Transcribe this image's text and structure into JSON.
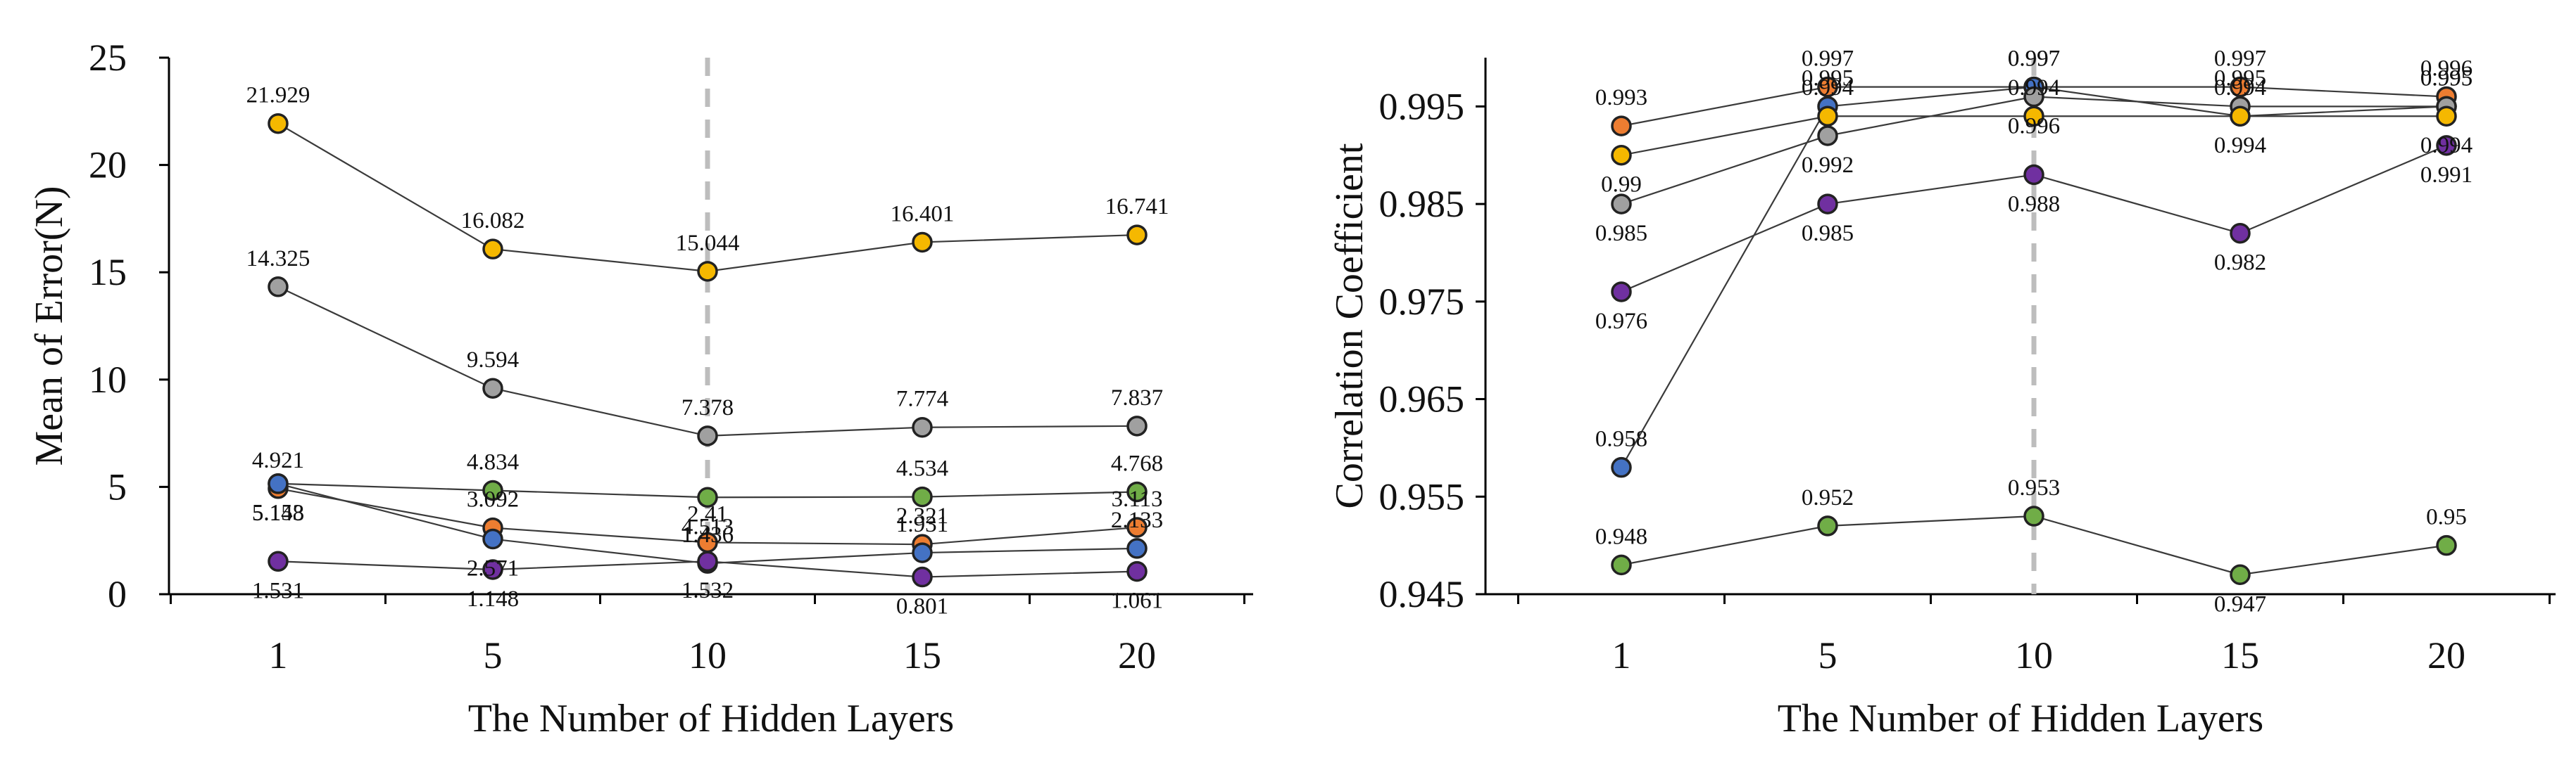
{
  "chart_data": [
    {
      "type": "line",
      "xlabel": "The Number of Hidden Layers",
      "ylabel": "Mean of Error(N)",
      "categories": [
        "1",
        "5",
        "10",
        "15",
        "20"
      ],
      "ylim": [
        0,
        25
      ],
      "yticks": [
        "0",
        "5",
        "10",
        "15",
        "20",
        "25"
      ],
      "reference_category": "10",
      "series": [
        {
          "name": "yellow",
          "color": "#F5B800",
          "values": [
            21.929,
            16.082,
            15.044,
            16.401,
            16.741
          ],
          "labels": [
            "21.929",
            "16.082",
            "15.044",
            "16.401",
            "16.741"
          ],
          "label_pos": [
            "above",
            "above",
            "above",
            "above",
            "above"
          ]
        },
        {
          "name": "gray",
          "color": "#A0A0A0",
          "values": [
            14.325,
            9.594,
            7.378,
            7.774,
            7.837
          ],
          "labels": [
            "14.325",
            "9.594",
            "7.378",
            "7.774",
            "7.837"
          ],
          "label_pos": [
            "above",
            "above",
            "above",
            "above",
            "above"
          ]
        },
        {
          "name": "green",
          "color": "#70AD47",
          "values": [
            5.153,
            4.834,
            4.513,
            4.534,
            4.768
          ],
          "labels": [
            "5.153",
            "4.834",
            "4.513",
            "4.534",
            "4.768"
          ],
          "label_pos": [
            "below",
            "above",
            "below",
            "above",
            "above"
          ]
        },
        {
          "name": "orange",
          "color": "#ED7D31",
          "values": [
            4.921,
            3.092,
            2.41,
            2.321,
            3.113
          ],
          "labels": [
            "4.921",
            "3.092",
            "2.41",
            "2.321",
            "3.113"
          ],
          "label_pos": [
            "above",
            "above",
            "above",
            "above",
            "above"
          ]
        },
        {
          "name": "blue",
          "color": "#4472C4",
          "values": [
            5.148,
            2.571,
            1.436,
            1.931,
            2.133
          ],
          "labels": [
            "5.148",
            "2.571",
            "1.436",
            "1.931",
            "2.133"
          ],
          "label_pos": [
            "below",
            "below",
            "above",
            "above",
            "above"
          ]
        },
        {
          "name": "purple",
          "color": "#7030A0",
          "values": [
            1.531,
            1.148,
            1.532,
            0.801,
            1.061
          ],
          "labels": [
            "1.531",
            "1.148",
            "1.532",
            "0.801",
            "1.061"
          ],
          "label_pos": [
            "below",
            "below",
            "below",
            "below",
            "below"
          ]
        }
      ]
    },
    {
      "type": "line",
      "xlabel": "The Number of Hidden Layers",
      "ylabel": "Correlation Coefficient",
      "categories": [
        "1",
        "5",
        "10",
        "15",
        "20"
      ],
      "ylim": [
        0.945,
        1.0
      ],
      "yticks": [
        "0.945",
        "0.955",
        "0.965",
        "0.975",
        "0.985",
        "0.995"
      ],
      "reference_category": "10",
      "series": [
        {
          "name": "orange",
          "color": "#ED7D31",
          "values": [
            0.993,
            0.997,
            0.997,
            0.997,
            0.996
          ],
          "labels": [
            "0.993",
            "0.997",
            "0.997",
            "0.997",
            "0.996"
          ],
          "label_pos": [
            "above",
            "above",
            "above",
            "above",
            "above"
          ]
        },
        {
          "name": "blue",
          "color": "#4472C4",
          "values": [
            0.958,
            0.995,
            0.997,
            0.994,
            0.995
          ],
          "labels": [
            "0.958",
            "0.995",
            "0.997",
            "0.994",
            "0.995"
          ],
          "label_pos": [
            "above",
            "above",
            "above",
            "above",
            "above"
          ]
        },
        {
          "name": "gray",
          "color": "#A0A0A0",
          "values": [
            0.985,
            0.992,
            0.996,
            0.995,
            0.995
          ],
          "labels": [
            "0.985",
            "0.992",
            "0.996",
            "0.995",
            "0.995"
          ],
          "label_pos": [
            "below",
            "below",
            "below",
            "above",
            "above"
          ]
        },
        {
          "name": "yellow",
          "color": "#F5B800",
          "values": [
            0.99,
            0.994,
            0.994,
            0.994,
            0.994
          ],
          "labels": [
            "0.99",
            "0.994",
            "0.994",
            "0.994",
            "0.994"
          ],
          "label_pos": [
            "below",
            "above",
            "above",
            "below",
            "below"
          ]
        },
        {
          "name": "purple",
          "color": "#7030A0",
          "values": [
            0.976,
            0.985,
            0.988,
            0.982,
            0.991
          ],
          "labels": [
            "0.976",
            "0.985",
            "0.988",
            "0.982",
            "0.991"
          ],
          "label_pos": [
            "below",
            "below",
            "below",
            "below",
            "below"
          ]
        },
        {
          "name": "green",
          "color": "#70AD47",
          "values": [
            0.948,
            0.952,
            0.953,
            0.947,
            0.95
          ],
          "labels": [
            "0.948",
            "0.952",
            "0.953",
            "0.947",
            "0.95"
          ],
          "label_pos": [
            "above",
            "above",
            "above",
            "below",
            "above"
          ]
        }
      ]
    }
  ]
}
